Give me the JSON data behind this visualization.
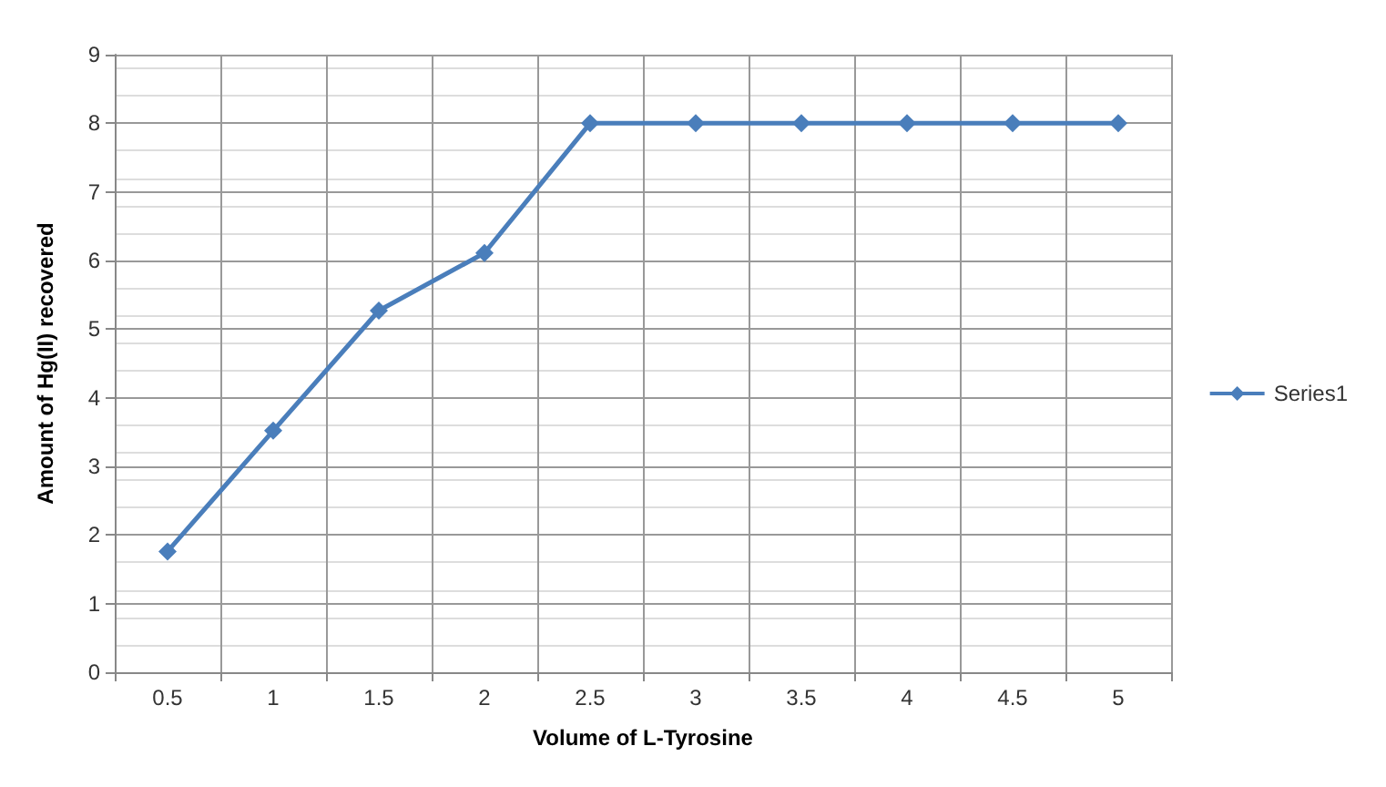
{
  "chart_data": {
    "type": "line",
    "xlabel": "Volume of L-Tyrosine",
    "ylabel": "Amount of Hg(II) recovered",
    "categories": [
      "0.5",
      "1",
      "1.5",
      "2",
      "2.5",
      "3",
      "3.5",
      "4",
      "4.5",
      "5"
    ],
    "series": [
      {
        "name": "Series1",
        "color": "#4a7ebb",
        "values": [
          1.76,
          3.52,
          5.27,
          6.11,
          8,
          8,
          8,
          8,
          8,
          8
        ]
      }
    ],
    "ylim": [
      0,
      9
    ],
    "yticks": [
      0,
      1,
      2,
      3,
      4,
      5,
      6,
      7,
      8,
      9
    ],
    "grid": true,
    "legend": "right",
    "marker": "diamond",
    "line_style": "solid"
  }
}
